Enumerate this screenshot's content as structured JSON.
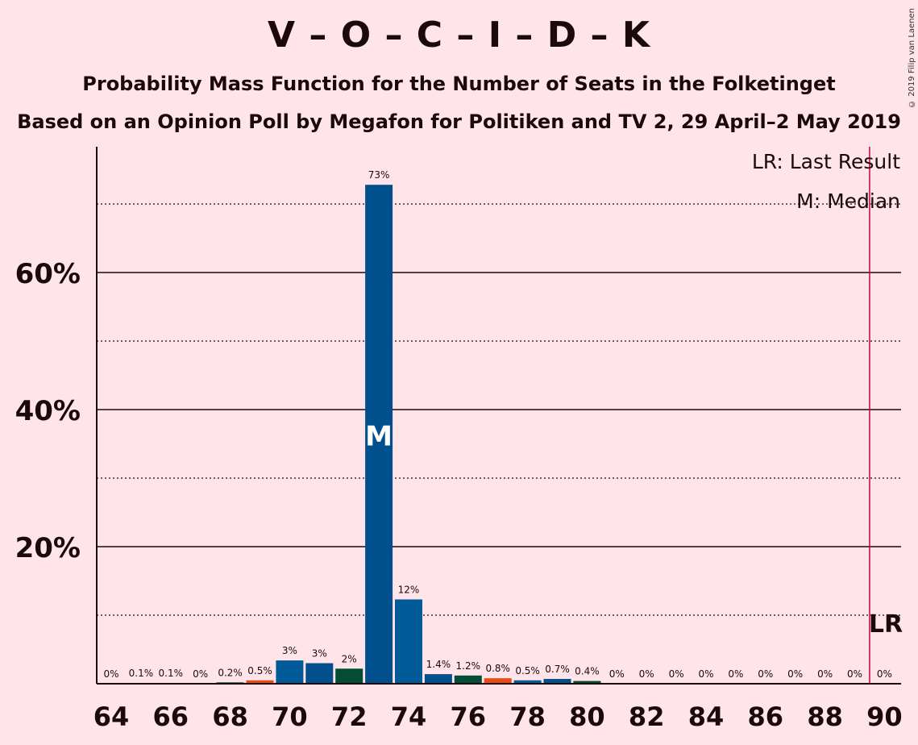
{
  "title": "V – O – C – I – D – K",
  "subtitle1": "Probability Mass Function for the Number of Seats in the Folketinget",
  "subtitle2": "Based on an Opinion Poll by Megafon for Politiken and TV 2, 29 April–2 May 2019",
  "copyright": "© 2019 Filip van Laenen",
  "colors": {
    "background": "#FFE4E9",
    "bar_cycle": [
      "#034D36",
      "#E84C14",
      "#005B98",
      "#00508E"
    ],
    "median_bar": "#00508E",
    "last_result_line": "#C8003C"
  },
  "chart_data": {
    "type": "bar",
    "x": [
      64,
      65,
      66,
      67,
      68,
      69,
      70,
      71,
      72,
      73,
      74,
      75,
      76,
      77,
      78,
      79,
      80,
      81,
      82,
      83,
      84,
      85,
      86,
      87,
      88,
      89,
      90
    ],
    "values": [
      0,
      0.1,
      0.1,
      0,
      0.2,
      0.5,
      3.4,
      3.0,
      2.2,
      72.8,
      12.3,
      1.4,
      1.2,
      0.8,
      0.5,
      0.7,
      0.4,
      0,
      0,
      0,
      0,
      0,
      0,
      0,
      0,
      0,
      0
    ],
    "labels": [
      "0%",
      "0.1%",
      "0.1%",
      "0%",
      "0.2%",
      "0.5%",
      "3%",
      "3%",
      "2%",
      "73%",
      "12%",
      "1.4%",
      "1.2%",
      "0.8%",
      "0.5%",
      "0.7%",
      "0.4%",
      "0%",
      "0%",
      "0%",
      "0%",
      "0%",
      "0%",
      "0%",
      "0%",
      "0%",
      "0%"
    ],
    "x_ticks": [
      "64",
      "66",
      "68",
      "70",
      "72",
      "74",
      "76",
      "78",
      "80",
      "82",
      "84",
      "86",
      "88",
      "90"
    ],
    "y_ticks": [
      "20%",
      "40%",
      "60%"
    ],
    "y_tick_values": [
      20,
      40,
      60
    ],
    "y_dotted_values": [
      10,
      30,
      50,
      70
    ],
    "ylim": [
      0,
      79
    ],
    "median_seat": 73,
    "median_marker": "M",
    "last_result_seat": 89.5,
    "last_result_marker": "LR",
    "legend": [
      "LR: Last Result",
      "M: Median"
    ],
    "legend_position": "top-right",
    "grid": true
  }
}
